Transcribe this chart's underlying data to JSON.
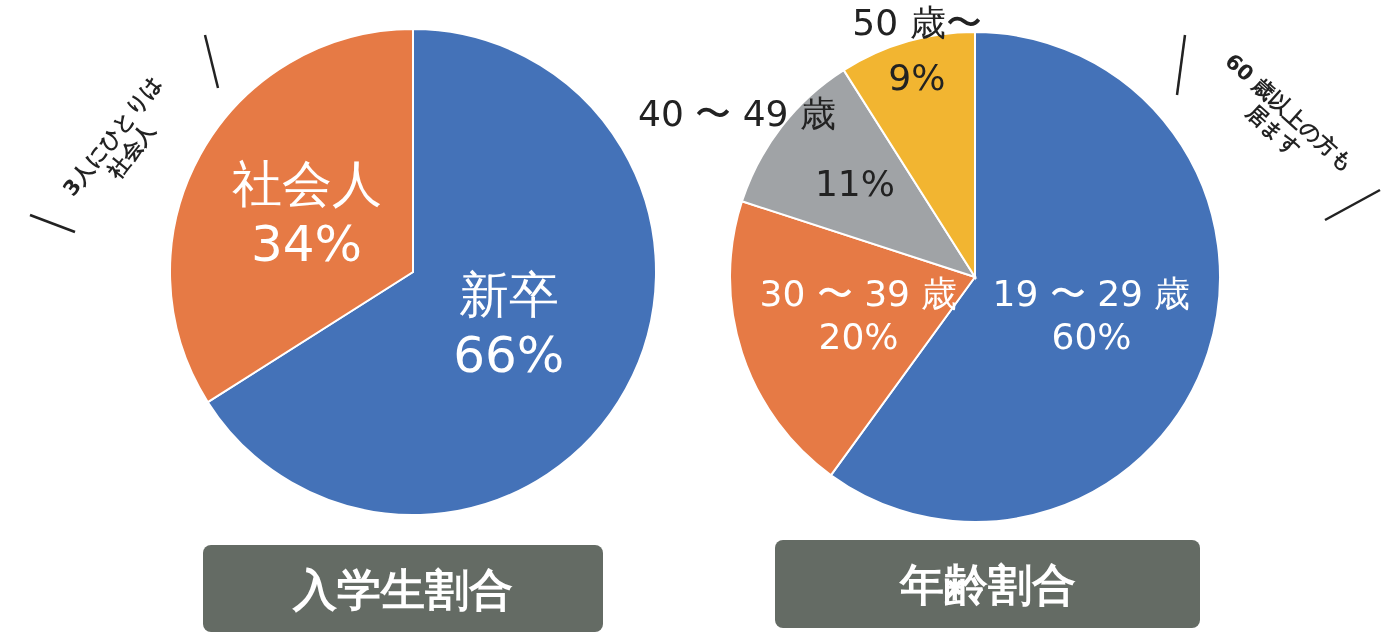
{
  "chart_data": [
    {
      "type": "pie",
      "title": "入学生割合",
      "categories": [
        "新卒",
        "社会人"
      ],
      "values": [
        66,
        34
      ],
      "colors": [
        "#4472b8",
        "#e67a45"
      ],
      "value_labels": [
        "66%",
        "34%"
      ],
      "annotations": [
        "3人にひとりは\n社会人"
      ]
    },
    {
      "type": "pie",
      "title": "年齢割合",
      "categories": [
        "19 〜 29 歳",
        "30 〜 39 歳",
        "40 〜 49 歳",
        "50 歳〜"
      ],
      "values": [
        60,
        20,
        11,
        9
      ],
      "colors": [
        "#4472b8",
        "#e67a45",
        "#a0a3a6",
        "#f2b531"
      ],
      "value_labels": [
        "60%",
        "20%",
        "11%",
        "9%"
      ],
      "annotations": [
        "60 歳以上の方も\n居ます"
      ]
    }
  ]
}
